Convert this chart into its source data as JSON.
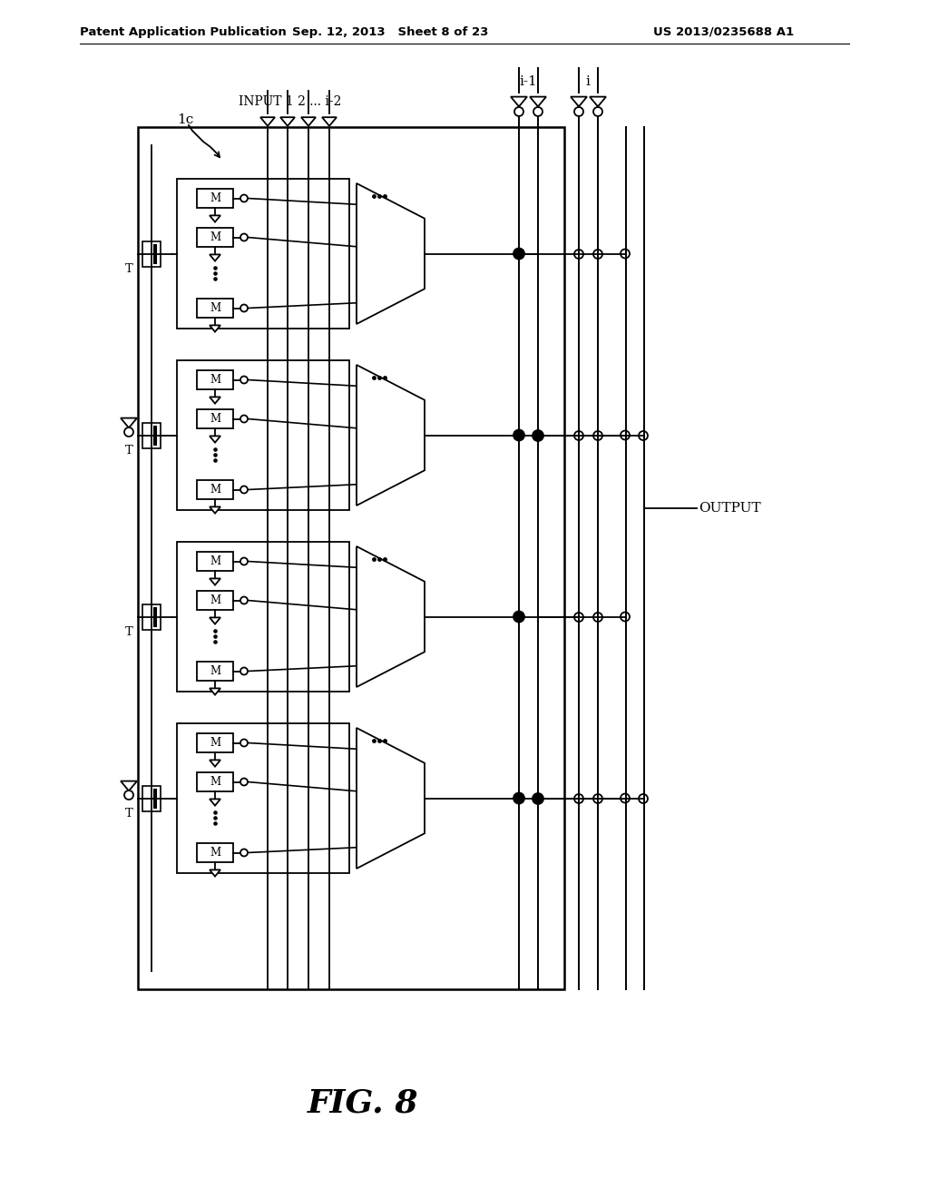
{
  "patent_header_left": "Patent Application Publication",
  "patent_header_mid": "Sep. 12, 2013   Sheet 8 of 23",
  "patent_header_right": "US 2013/0235688 A1",
  "label_1c": "1c",
  "label_input": "INPUT 1 2 ... i-2",
  "label_i_minus_1": "i-1",
  "label_i": "i",
  "label_output": "OUTPUT",
  "fig_label": "FIG. 8",
  "bg_color": "#ffffff",
  "line_color": "#000000"
}
